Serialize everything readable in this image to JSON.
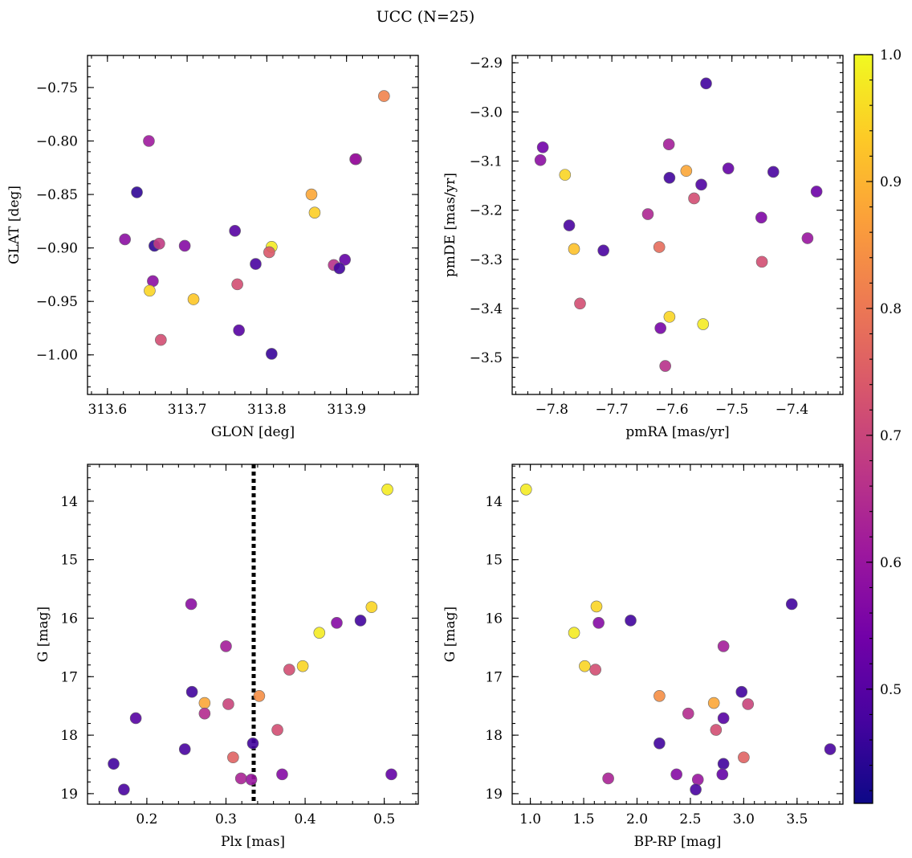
{
  "title": "UCC (N=25)",
  "colors": {
    "plasma_stops": [
      "#0d0887",
      "#46039f",
      "#7201a8",
      "#9c179e",
      "#bd3786",
      "#d8576b",
      "#ed7953",
      "#fb9f3a",
      "#fdca26",
      "#f0f921"
    ],
    "reference_line": "#000000"
  },
  "colorbar": {
    "min": 0.41,
    "max": 1.0,
    "ticks": [
      0.5,
      0.6,
      0.7,
      0.8,
      0.9,
      1.0
    ],
    "tick_labels": [
      "0.5",
      "0.6",
      "0.7",
      "0.8",
      "0.9",
      "1.0"
    ],
    "placement": "right"
  },
  "chart_data": [
    {
      "type": "scatter",
      "xlabel": "GLON [deg]",
      "ylabel": "GLAT [deg]",
      "xlim": [
        313.575,
        313.99
      ],
      "ylim": [
        -1.037,
        -0.72
      ],
      "y_inverted": false,
      "xticks": [
        313.6,
        313.7,
        313.8,
        313.9
      ],
      "xtick_labels": [
        "313.6",
        "313.7",
        "313.8",
        "313.9"
      ],
      "yticks": [
        -0.75,
        -0.8,
        -0.85,
        -0.9,
        -0.95,
        -1.0
      ],
      "ytick_labels": [
        "−0.75",
        "−0.80",
        "−0.85",
        "−0.90",
        "−0.95",
        "−1.00"
      ],
      "points": [
        [
          313.947,
          -0.758,
          0.82
        ],
        [
          313.652,
          -0.8,
          0.61
        ],
        [
          313.912,
          -0.817,
          0.62
        ],
        [
          313.911,
          -0.817,
          0.6
        ],
        [
          313.637,
          -0.848,
          0.45
        ],
        [
          313.856,
          -0.85,
          0.88
        ],
        [
          313.86,
          -0.867,
          0.94
        ],
        [
          313.76,
          -0.884,
          0.5
        ],
        [
          313.622,
          -0.892,
          0.58
        ],
        [
          313.659,
          -0.898,
          0.45
        ],
        [
          313.665,
          -0.896,
          0.68
        ],
        [
          313.697,
          -0.898,
          0.57
        ],
        [
          313.806,
          -0.899,
          0.98
        ],
        [
          313.803,
          -0.904,
          0.74
        ],
        [
          313.786,
          -0.915,
          0.48
        ],
        [
          313.884,
          -0.916,
          0.66
        ],
        [
          313.898,
          -0.911,
          0.52
        ],
        [
          313.891,
          -0.919,
          0.47
        ],
        [
          313.657,
          -0.931,
          0.58
        ],
        [
          313.763,
          -0.934,
          0.72
        ],
        [
          313.653,
          -0.94,
          0.95
        ],
        [
          313.708,
          -0.948,
          0.93
        ],
        [
          313.765,
          -0.977,
          0.5
        ],
        [
          313.667,
          -0.986,
          0.72
        ],
        [
          313.806,
          -0.999,
          0.46
        ]
      ]
    },
    {
      "type": "scatter",
      "xlabel": "pmRA [mas/yr]",
      "ylabel": "pmDE [mas/yr]",
      "xlim": [
        -7.866,
        -7.315
      ],
      "ylim": [
        -3.575,
        -2.885
      ],
      "y_inverted": false,
      "xticks": [
        -7.8,
        -7.7,
        -7.6,
        -7.5,
        -7.4
      ],
      "xtick_labels": [
        "−7.8",
        "−7.7",
        "−7.6",
        "−7.5",
        "−7.4"
      ],
      "yticks": [
        -2.9,
        -3.0,
        -3.1,
        -3.2,
        -3.3,
        -3.4,
        -3.5
      ],
      "ytick_labels": [
        "−2.9",
        "−3.0",
        "−3.1",
        "−3.2",
        "−3.3",
        "−3.4",
        "−3.5"
      ],
      "points": [
        [
          -7.543,
          -2.942,
          0.47
        ],
        [
          -7.815,
          -3.072,
          0.54
        ],
        [
          -7.819,
          -3.098,
          0.58
        ],
        [
          -7.605,
          -3.066,
          0.62
        ],
        [
          -7.778,
          -3.128,
          0.95
        ],
        [
          -7.576,
          -3.12,
          0.88
        ],
        [
          -7.604,
          -3.134,
          0.47
        ],
        [
          -7.506,
          -3.115,
          0.52
        ],
        [
          -7.431,
          -3.122,
          0.48
        ],
        [
          -7.551,
          -3.148,
          0.49
        ],
        [
          -7.563,
          -3.176,
          0.72
        ],
        [
          -7.359,
          -3.162,
          0.53
        ],
        [
          -7.64,
          -3.208,
          0.64
        ],
        [
          -7.451,
          -3.215,
          0.56
        ],
        [
          -7.771,
          -3.231,
          0.48
        ],
        [
          -7.763,
          -3.279,
          0.92
        ],
        [
          -7.714,
          -3.282,
          0.48
        ],
        [
          -7.621,
          -3.275,
          0.78
        ],
        [
          -7.374,
          -3.257,
          0.6
        ],
        [
          -7.45,
          -3.305,
          0.72
        ],
        [
          -7.753,
          -3.39,
          0.72
        ],
        [
          -7.604,
          -3.417,
          0.95
        ],
        [
          -7.548,
          -3.432,
          0.98
        ],
        [
          -7.619,
          -3.44,
          0.55
        ],
        [
          -7.611,
          -3.517,
          0.66
        ]
      ]
    },
    {
      "type": "scatter",
      "xlabel": "Plx [mas]",
      "ylabel": "G [mag]",
      "xlim": [
        0.125,
        0.543
      ],
      "ylim": [
        19.18,
        13.37
      ],
      "y_inverted": true,
      "xticks": [
        0.2,
        0.3,
        0.4,
        0.5
      ],
      "xtick_labels": [
        "0.2",
        "0.3",
        "0.4",
        "0.5"
      ],
      "yticks": [
        14,
        15,
        16,
        17,
        18,
        19
      ],
      "ytick_labels": [
        "14",
        "15",
        "16",
        "17",
        "18",
        "19"
      ],
      "reference_x": 0.335,
      "points": [
        [
          0.504,
          13.8,
          0.98
        ],
        [
          0.256,
          15.76,
          0.58
        ],
        [
          0.484,
          15.81,
          0.95
        ],
        [
          0.47,
          16.04,
          0.47
        ],
        [
          0.44,
          16.08,
          0.57
        ],
        [
          0.418,
          16.25,
          0.98
        ],
        [
          0.3,
          16.48,
          0.62
        ],
        [
          0.397,
          16.82,
          0.95
        ],
        [
          0.38,
          16.88,
          0.72
        ],
        [
          0.257,
          17.26,
          0.47
        ],
        [
          0.342,
          17.33,
          0.84
        ],
        [
          0.273,
          17.45,
          0.88
        ],
        [
          0.303,
          17.47,
          0.7
        ],
        [
          0.273,
          17.63,
          0.65
        ],
        [
          0.186,
          17.71,
          0.5
        ],
        [
          0.365,
          17.91,
          0.72
        ],
        [
          0.334,
          18.14,
          0.47
        ],
        [
          0.248,
          18.24,
          0.48
        ],
        [
          0.309,
          18.38,
          0.76
        ],
        [
          0.158,
          18.49,
          0.47
        ],
        [
          0.371,
          18.67,
          0.57
        ],
        [
          0.509,
          18.67,
          0.52
        ],
        [
          0.319,
          18.74,
          0.63
        ],
        [
          0.332,
          18.76,
          0.6
        ],
        [
          0.171,
          18.93,
          0.48
        ]
      ]
    },
    {
      "type": "scatter",
      "xlabel": "BP-RP [mag]",
      "ylabel": "G [mag]",
      "xlim": [
        0.83,
        3.93
      ],
      "ylim": [
        19.18,
        13.37
      ],
      "y_inverted": true,
      "xticks": [
        1.0,
        1.5,
        2.0,
        2.5,
        3.0,
        3.5
      ],
      "xtick_labels": [
        "1.0",
        "1.5",
        "2.0",
        "2.5",
        "3.0",
        "3.5"
      ],
      "yticks": [
        14,
        15,
        16,
        17,
        18,
        19
      ],
      "ytick_labels": [
        "14",
        "15",
        "16",
        "17",
        "18",
        "19"
      ],
      "points": [
        [
          0.96,
          13.8,
          0.98
        ],
        [
          3.45,
          15.76,
          0.47
        ],
        [
          1.62,
          15.8,
          0.95
        ],
        [
          1.94,
          16.04,
          0.47
        ],
        [
          1.64,
          16.08,
          0.57
        ],
        [
          1.41,
          16.25,
          0.98
        ],
        [
          2.81,
          16.48,
          0.62
        ],
        [
          1.51,
          16.82,
          0.95
        ],
        [
          1.61,
          16.88,
          0.72
        ],
        [
          2.98,
          17.26,
          0.47
        ],
        [
          2.21,
          17.33,
          0.84
        ],
        [
          2.72,
          17.45,
          0.88
        ],
        [
          3.04,
          17.47,
          0.7
        ],
        [
          2.48,
          17.63,
          0.65
        ],
        [
          2.81,
          17.71,
          0.5
        ],
        [
          2.74,
          17.91,
          0.72
        ],
        [
          2.21,
          18.14,
          0.47
        ],
        [
          3.81,
          18.24,
          0.48
        ],
        [
          3.0,
          18.38,
          0.76
        ],
        [
          2.81,
          18.49,
          0.47
        ],
        [
          2.37,
          18.67,
          0.57
        ],
        [
          2.8,
          18.67,
          0.52
        ],
        [
          1.73,
          18.74,
          0.63
        ],
        [
          2.57,
          18.76,
          0.6
        ],
        [
          2.55,
          18.93,
          0.48
        ]
      ]
    }
  ]
}
